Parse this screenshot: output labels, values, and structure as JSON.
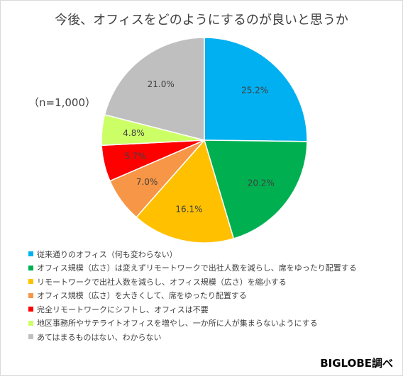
{
  "chart_data": {
    "type": "pie",
    "title": "今後、オフィスをどのようにするのが良いと思うか",
    "note": "（n=1,000）",
    "slices": [
      {
        "label": "従来通りのオフィス（何も変わらない）",
        "value": 25.2,
        "value_label": "25.2%",
        "color": "#00b0f0"
      },
      {
        "label": "オフィス規模（広さ）は変えずリモートワークで出社人数を減らし、席をゆったり配置する",
        "value": 20.2,
        "value_label": "20.2%",
        "color": "#00b050"
      },
      {
        "label": "リモートワークで出社人数を減らし、オフィス規模（広さ）を縮小する",
        "value": 16.1,
        "value_label": "16.1%",
        "color": "#ffc000"
      },
      {
        "label": "オフィス規模（広さ）を大きくして、席をゆったり配置する",
        "value": 7.0,
        "value_label": "7.0%",
        "color": "#f79646"
      },
      {
        "label": "完全リモートワークにシフトし、オフィスは不要",
        "value": 5.7,
        "value_label": "5.7%",
        "color": "#ff0000"
      },
      {
        "label": "地区事務所やサテライトオフィスを増やし、一か所に人が集まらないようにする",
        "value": 4.8,
        "value_label": "4.8%",
        "color": "#ccff66"
      },
      {
        "label": "あてはまるものはない、わからない",
        "value": 21.0,
        "value_label": "21.0%",
        "color": "#bfbfbf"
      }
    ],
    "legend_position": "bottom"
  },
  "credit": "BIGLOBE調べ"
}
